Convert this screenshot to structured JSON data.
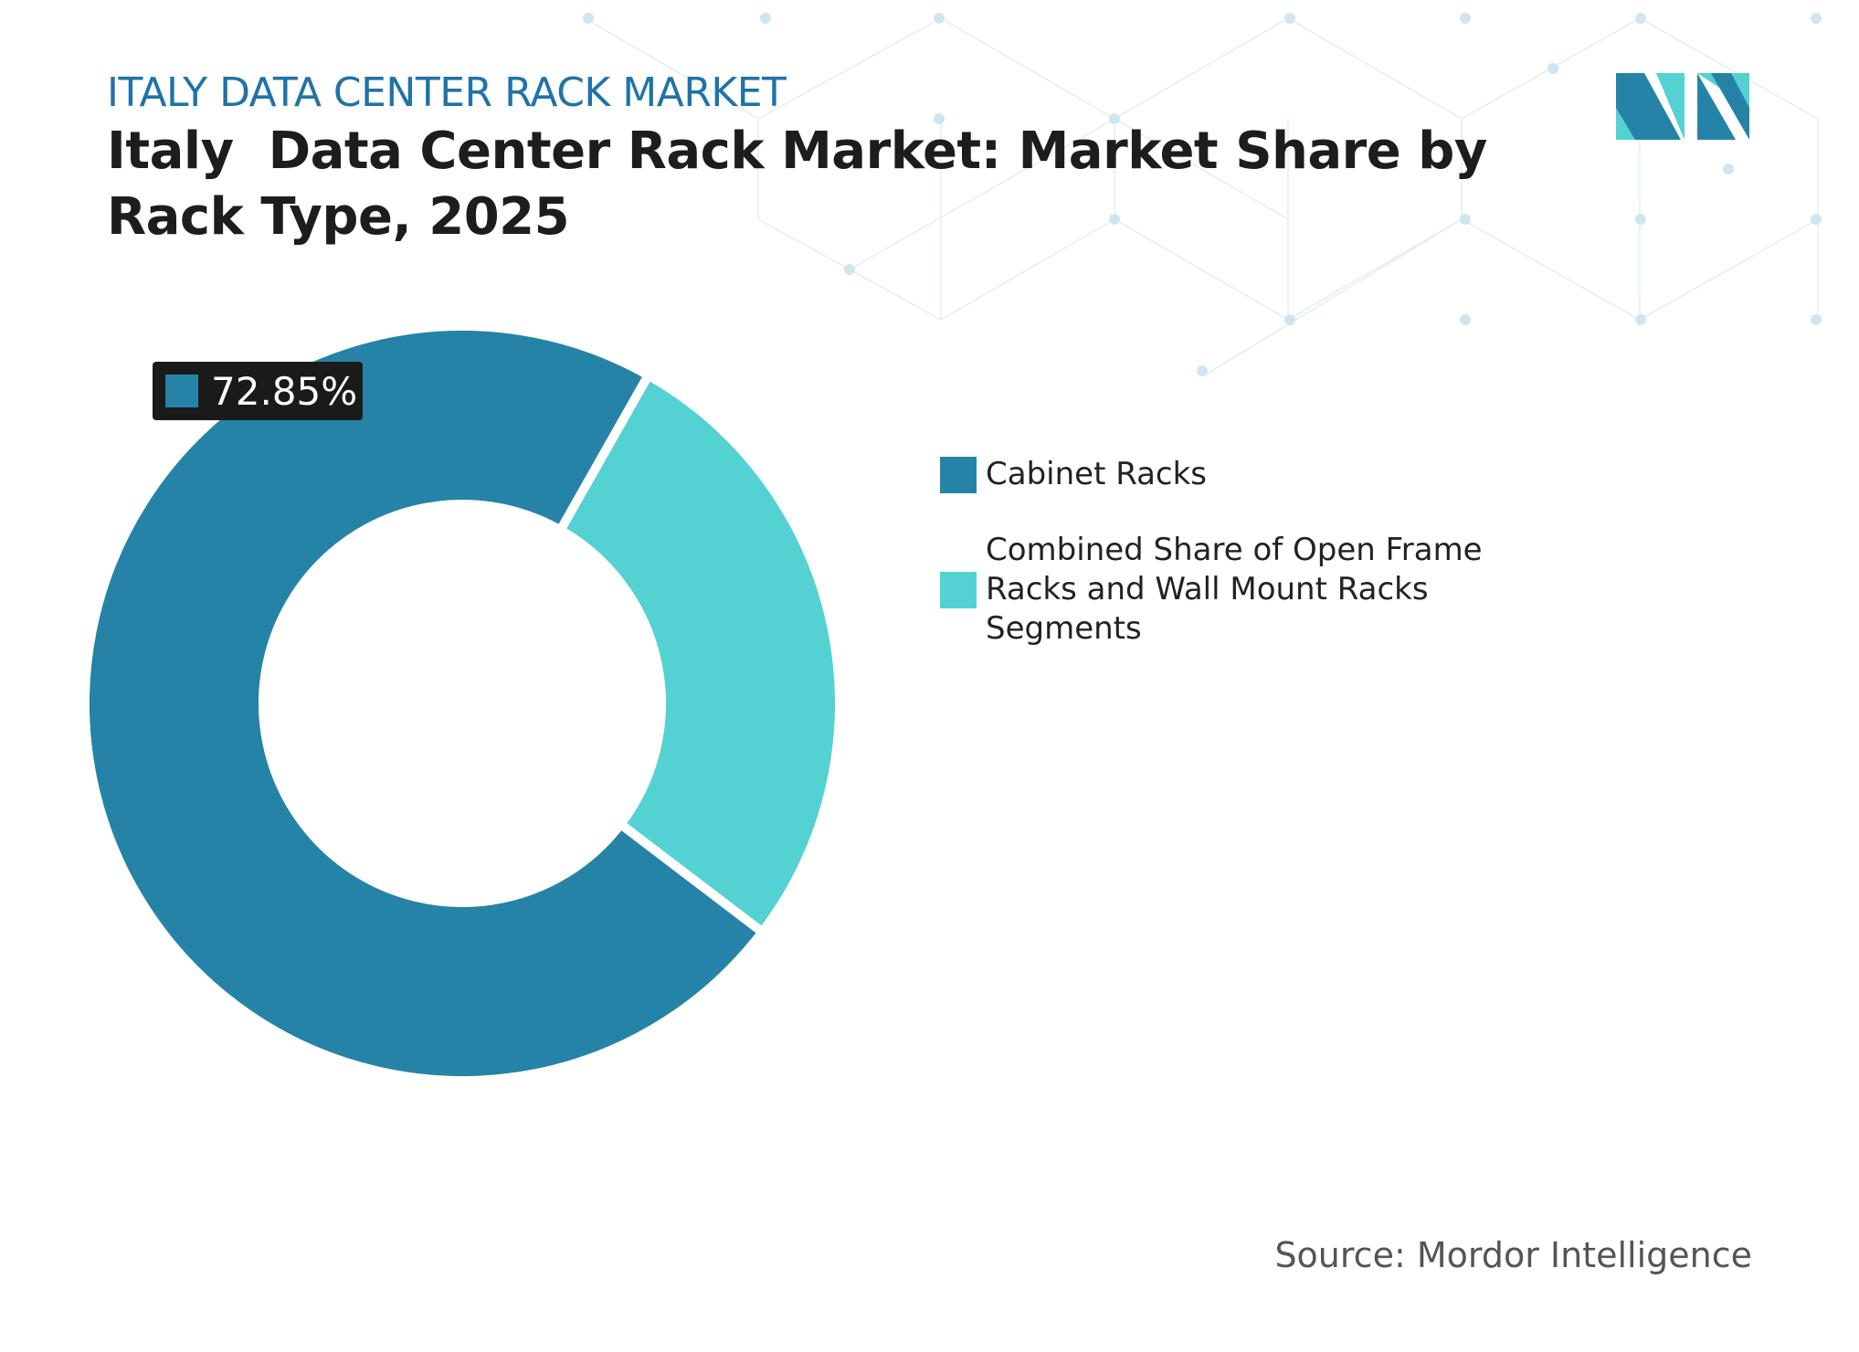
{
  "chart_data": {
    "type": "donut",
    "kicker": "ITALY DATA CENTER RACK MARKET",
    "title": "Italy  Data Center Rack Market: Market Share by Rack Type, 2025",
    "categories": [
      "Cabinet Racks",
      "Combined Share of Open Frame Racks and Wall Mount Racks Segments"
    ],
    "values": [
      72.85,
      27.15
    ],
    "value_labels": [
      "72.85%",
      null
    ],
    "colors": [
      "#2683a8",
      "#53d1d3"
    ],
    "source": "Source: Mordor Intelligence"
  }
}
